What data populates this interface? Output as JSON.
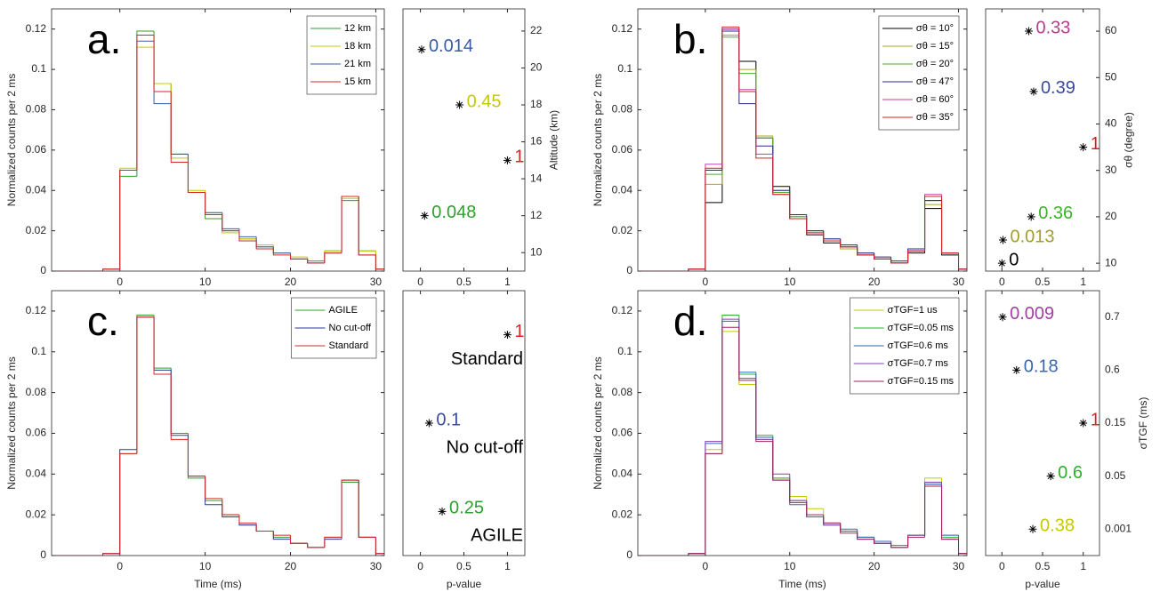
{
  "chart_data": [
    {
      "type": "histogram",
      "panel_label": "a.",
      "ylabel": "Normalized counts per 2 ms",
      "bins": [
        -8,
        -6,
        -4,
        -2,
        0,
        2,
        4,
        6,
        8,
        10,
        12,
        14,
        16,
        18,
        20,
        22,
        24,
        26,
        28,
        30,
        32
      ],
      "xlim": [
        -8,
        31
      ],
      "ylim": [
        0,
        0.13
      ],
      "xticks": [
        0,
        10,
        20,
        30
      ],
      "yticks": [
        0,
        0.02,
        0.04,
        0.06,
        0.08,
        0.1,
        0.12
      ],
      "legend": "upper right",
      "series": [
        {
          "name": "12 km",
          "color": "#2ca02c",
          "values": [
            0,
            0,
            0,
            0.001,
            0.047,
            0.119,
            0.093,
            0.058,
            0.039,
            0.026,
            0.02,
            0.016,
            0.012,
            0.009,
            0.006,
            0.005,
            0.01,
            0.035,
            0.01,
            0.001
          ]
        },
        {
          "name": "18 km",
          "color": "#c8c800",
          "values": [
            0,
            0,
            0,
            0.001,
            0.051,
            0.111,
            0.093,
            0.056,
            0.04,
            0.029,
            0.019,
            0.016,
            0.013,
            0.009,
            0.007,
            0.004,
            0.01,
            0.036,
            0.01,
            0.001
          ]
        },
        {
          "name": "21 km",
          "color": "#3a5ba8",
          "values": [
            0,
            0,
            0,
            0.001,
            0.05,
            0.114,
            0.083,
            0.058,
            0.039,
            0.029,
            0.021,
            0.017,
            0.012,
            0.009,
            0.006,
            0.004,
            0.009,
            0.037,
            0.008,
            0.001
          ]
        },
        {
          "name": "15 km",
          "color": "#d62728",
          "values": [
            0,
            0,
            0,
            0.001,
            0.05,
            0.117,
            0.089,
            0.054,
            0.039,
            0.028,
            0.02,
            0.015,
            0.011,
            0.008,
            0.006,
            0.004,
            0.009,
            0.037,
            0.008,
            0.001
          ]
        }
      ]
    },
    {
      "type": "scatter",
      "ylabel": "Altitude (km)",
      "xlim": [
        -0.2,
        1.2
      ],
      "xticks": [
        0,
        0.5,
        1
      ],
      "ylim": [
        9,
        23.2
      ],
      "yticks": [
        10,
        12,
        14,
        16,
        18,
        20,
        22
      ],
      "x": [
        0.014,
        0.45,
        1,
        0.048
      ],
      "y": [
        21,
        18,
        15,
        12
      ],
      "label_colors": [
        "#3a5ba8",
        "#c8c800",
        "#d62728",
        "#2ca02c"
      ]
    },
    {
      "type": "histogram",
      "panel_label": "b.",
      "ylabel": "Normalized counts per 2 ms",
      "bins": [
        -8,
        -6,
        -4,
        -2,
        0,
        2,
        4,
        6,
        8,
        10,
        12,
        14,
        16,
        18,
        20,
        22,
        24,
        26,
        28,
        30,
        32
      ],
      "xlim": [
        -8,
        31
      ],
      "ylim": [
        0,
        0.13
      ],
      "xticks": [
        0,
        10,
        20,
        30
      ],
      "yticks": [
        0,
        0.02,
        0.04,
        0.06,
        0.08,
        0.1,
        0.12
      ],
      "legend": "upper right",
      "series": [
        {
          "name": "σθ = 10°",
          "color": "#000000",
          "values": [
            0,
            0,
            0,
            0.001,
            0.034,
            0.12,
            0.104,
            0.066,
            0.042,
            0.026,
            0.018,
            0.014,
            0.012,
            0.008,
            0.006,
            0.004,
            0.009,
            0.031,
            0.008,
            0.001
          ]
        },
        {
          "name": "σθ = 15°",
          "color": "#a8a820",
          "values": [
            0,
            0,
            0,
            0.001,
            0.043,
            0.117,
            0.1,
            0.067,
            0.04,
            0.027,
            0.02,
            0.015,
            0.011,
            0.009,
            0.006,
            0.004,
            0.01,
            0.033,
            0.009,
            0.001
          ]
        },
        {
          "name": "σθ = 20°",
          "color": "#4caf2a",
          "values": [
            0,
            0,
            0,
            0.001,
            0.048,
            0.116,
            0.098,
            0.066,
            0.039,
            0.027,
            0.02,
            0.016,
            0.012,
            0.009,
            0.006,
            0.004,
            0.01,
            0.035,
            0.009,
            0.001
          ]
        },
        {
          "name": "σθ = 47°",
          "color": "#2a2a90",
          "values": [
            0,
            0,
            0,
            0.001,
            0.05,
            0.119,
            0.083,
            0.062,
            0.04,
            0.028,
            0.02,
            0.016,
            0.013,
            0.009,
            0.007,
            0.005,
            0.011,
            0.035,
            0.009,
            0.001
          ]
        },
        {
          "name": "σθ = 60°",
          "color": "#c040b0",
          "values": [
            0,
            0,
            0,
            0.001,
            0.053,
            0.12,
            0.09,
            0.058,
            0.038,
            0.026,
            0.019,
            0.015,
            0.012,
            0.008,
            0.006,
            0.004,
            0.01,
            0.038,
            0.009,
            0.001
          ]
        },
        {
          "name": "σθ = 35°",
          "color": "#d02020",
          "values": [
            0,
            0,
            0,
            0.001,
            0.051,
            0.121,
            0.089,
            0.056,
            0.038,
            0.026,
            0.019,
            0.015,
            0.012,
            0.008,
            0.006,
            0.004,
            0.01,
            0.037,
            0.009,
            0.001
          ]
        }
      ]
    },
    {
      "type": "scatter",
      "ylabel": "σθ (degree)",
      "xlim": [
        -0.2,
        1.2
      ],
      "xticks": [
        0,
        0.5,
        1
      ],
      "ylim": [
        8.3,
        64.8
      ],
      "yticks": [
        10,
        20,
        30,
        40,
        50,
        60
      ],
      "x": [
        0.33,
        0.39,
        1,
        0.36,
        0.013,
        0
      ],
      "y": [
        60,
        47,
        35,
        20,
        15,
        10
      ],
      "label_colors": [
        "#b0408a",
        "#3a4aa0",
        "#d02020",
        "#3cb32a",
        "#a0a028",
        "#000000"
      ]
    },
    {
      "type": "histogram",
      "panel_label": "c.",
      "ylabel": "Normalized counts per 2 ms",
      "xlabel": "Time (ms)",
      "bins": [
        -8,
        -6,
        -4,
        -2,
        0,
        2,
        4,
        6,
        8,
        10,
        12,
        14,
        16,
        18,
        20,
        22,
        24,
        26,
        28,
        30,
        32
      ],
      "xlim": [
        -8,
        31
      ],
      "ylim": [
        0,
        0.13
      ],
      "xticks": [
        0,
        10,
        20,
        30
      ],
      "yticks": [
        0,
        0.02,
        0.04,
        0.06,
        0.08,
        0.1,
        0.12
      ],
      "legend": "upper right",
      "series": [
        {
          "name": "AGILE",
          "color": "#2ca02c",
          "values": [
            0,
            0,
            0,
            0.001,
            0.05,
            0.118,
            0.092,
            0.06,
            0.038,
            0.027,
            0.02,
            0.015,
            0.012,
            0.009,
            0.006,
            0.004,
            0.009,
            0.036,
            0.009,
            0.001
          ]
        },
        {
          "name": "No cut-off",
          "color": "#2a3a98",
          "values": [
            0,
            0,
            0,
            0.001,
            0.052,
            0.117,
            0.091,
            0.059,
            0.039,
            0.025,
            0.019,
            0.015,
            0.012,
            0.008,
            0.006,
            0.004,
            0.008,
            0.037,
            0.009,
            0.001
          ]
        },
        {
          "name": "Standard",
          "color": "#d62728",
          "values": [
            0,
            0,
            0,
            0.001,
            0.05,
            0.117,
            0.089,
            0.057,
            0.039,
            0.028,
            0.02,
            0.016,
            0.012,
            0.01,
            0.006,
            0.004,
            0.009,
            0.037,
            0.009,
            0.001
          ]
        }
      ]
    },
    {
      "type": "scatter",
      "xlabel": "p-value",
      "xlim": [
        -0.2,
        1.2
      ],
      "xticks": [
        0,
        0.5,
        1
      ],
      "category_labels": "inline",
      "categories": [
        "AGILE",
        "No cut-off",
        "Standard"
      ],
      "x": [
        0.25,
        0.1,
        1
      ],
      "label_colors": [
        "#2ca02c",
        "#3a4aa0",
        "#d62728"
      ]
    },
    {
      "type": "histogram",
      "panel_label": "d.",
      "ylabel": "Normalized counts per 2 ms",
      "xlabel": "Time (ms)",
      "bins": [
        -8,
        -6,
        -4,
        -2,
        0,
        2,
        4,
        6,
        8,
        10,
        12,
        14,
        16,
        18,
        20,
        22,
        24,
        26,
        28,
        30,
        32
      ],
      "xlim": [
        -8,
        31
      ],
      "ylim": [
        0,
        0.13
      ],
      "xticks": [
        0,
        10,
        20,
        30
      ],
      "yticks": [
        0,
        0.02,
        0.04,
        0.06,
        0.08,
        0.1,
        0.12
      ],
      "legend": "upper right",
      "series": [
        {
          "name": "σTGF=1 us",
          "color": "#c8c800",
          "values": [
            0,
            0,
            0,
            0.001,
            0.052,
            0.11,
            0.084,
            0.057,
            0.038,
            0.029,
            0.023,
            0.015,
            0.012,
            0.009,
            0.007,
            0.004,
            0.01,
            0.038,
            0.01,
            0.001
          ]
        },
        {
          "name": "σTGF=0.05 ms",
          "color": "#2db02d",
          "values": [
            0,
            0,
            0,
            0.001,
            0.05,
            0.118,
            0.089,
            0.059,
            0.038,
            0.027,
            0.019,
            0.016,
            0.012,
            0.009,
            0.006,
            0.005,
            0.01,
            0.035,
            0.009,
            0.001
          ]
        },
        {
          "name": "σTGF=0.6 ms",
          "color": "#3366bb",
          "values": [
            0,
            0,
            0,
            0.001,
            0.055,
            0.115,
            0.09,
            0.058,
            0.037,
            0.025,
            0.019,
            0.015,
            0.013,
            0.009,
            0.007,
            0.004,
            0.01,
            0.035,
            0.01,
            0.001
          ]
        },
        {
          "name": "σTGF=0.7 ms",
          "color": "#8040b0",
          "values": [
            0,
            0,
            0,
            0.001,
            0.056,
            0.116,
            0.087,
            0.057,
            0.04,
            0.027,
            0.019,
            0.015,
            0.012,
            0.008,
            0.006,
            0.004,
            0.01,
            0.036,
            0.008,
            0.001
          ]
        },
        {
          "name": "σTGF=0.15 ms",
          "color": "#a0205a",
          "values": [
            0,
            0,
            0,
            0.001,
            0.05,
            0.112,
            0.086,
            0.056,
            0.037,
            0.026,
            0.02,
            0.016,
            0.011,
            0.008,
            0.006,
            0.004,
            0.009,
            0.034,
            0.008,
            0.001
          ]
        }
      ]
    },
    {
      "type": "scatter",
      "ylabel": "σTGF (ms)",
      "xlabel": "p-value",
      "xlim": [
        -0.2,
        1.2
      ],
      "xticks": [
        0,
        0.5,
        1
      ],
      "category_labels": "axis",
      "categories": [
        "0.001",
        "0.05",
        "0.15",
        "0.6",
        "0.7"
      ],
      "x": [
        0.38,
        0.6,
        1,
        0.18,
        0.009
      ],
      "label_colors": [
        "#c8c800",
        "#2db02d",
        "#d62728",
        "#3a66b0",
        "#a040a0"
      ]
    }
  ]
}
